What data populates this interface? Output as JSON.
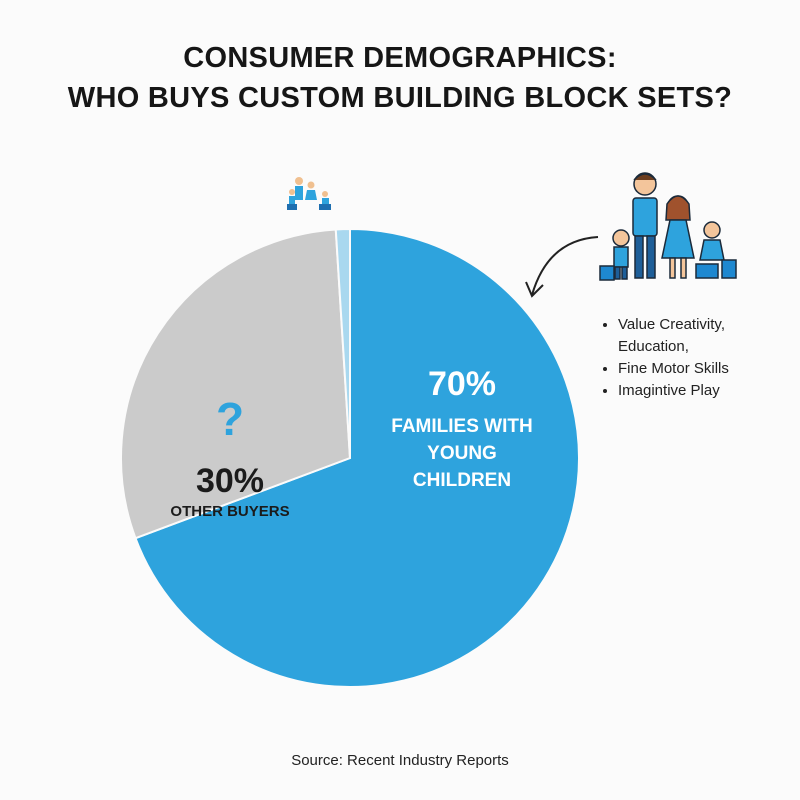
{
  "chart_data": {
    "type": "pie",
    "title": [
      "CONSUMER DEMOGRAPHICS:",
      "WHO BUYS CUSTOM BUILDING BLOCK SETS?"
    ],
    "categories": [
      "FAMILIES WITH YOUNG CHILDREN",
      "OTHER BUYERS",
      null
    ],
    "values": [
      70,
      30,
      1
    ],
    "value_labels": [
      "70%",
      "30%",
      null
    ],
    "colors": [
      "#2ea3dd",
      "#cbcbcb",
      "#a9d8ef"
    ],
    "question_mark": "?",
    "annotations": [
      "Value Creativity, Education,",
      "Fine Motor Skills",
      "Imagintive Play"
    ],
    "source": "Source: Recent Industry Reports"
  }
}
